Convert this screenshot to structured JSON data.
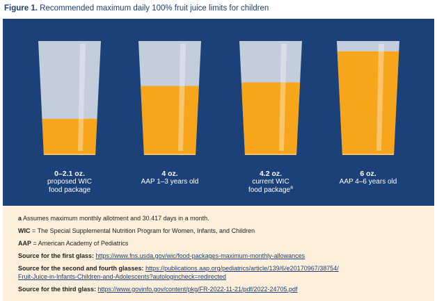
{
  "figure": {
    "label": "Figure 1.",
    "title": "Recommended maximum daily 100% fruit juice limits for children"
  },
  "colors": {
    "background": "#1c4179",
    "juice": "#f7a51b",
    "glass": "#d6dde6",
    "notes_background": "#fcefdc",
    "title": "#1d3f73"
  },
  "chart_data": {
    "type": "bar",
    "categories": [
      "0–2.1 oz.",
      "4 oz.",
      "4.2 oz.",
      "6 oz."
    ],
    "values": [
      2.1,
      4,
      4.2,
      6
    ],
    "unit": "oz.",
    "ylim": [
      0,
      6.6
    ],
    "captions": [
      {
        "amount": "0–2.1 oz.",
        "lines": [
          "proposed WIC",
          "food package"
        ],
        "footnote": ""
      },
      {
        "amount": "4 oz.",
        "lines": [
          "AAP 1–3 years old"
        ],
        "footnote": ""
      },
      {
        "amount": "4.2 oz.",
        "lines": [
          "current WIC",
          "food package"
        ],
        "footnote": "a"
      },
      {
        "amount": "6 oz.",
        "lines": [
          "AAP 4–6 years old"
        ],
        "footnote": ""
      }
    ]
  },
  "notes": {
    "a": {
      "key": "a",
      "text": " Assumes maximum monthly allotment and 30.417 days in a month."
    },
    "wic": {
      "key": "WIC",
      "text": " = The Special Supplemental Nutrition Program for Women, Infants, and Children"
    },
    "aap": {
      "key": "AAP",
      "text": " = American Academy of Pediatrics"
    },
    "source1": {
      "key": "Source for the first glass:",
      "url": "https://www.fns.usda.gov/wic/food-packages-maximum-monthly-allowances"
    },
    "source2": {
      "key": "Source for the second and fourth glasses:",
      "url_line1": "https://publications.aap.org/pediatrics/article/139/6/e20170967/38754/",
      "url_line2": "Fruit-Juice-in-Infants-Children-and-Adolescents?autologincheck=redirected"
    },
    "source3": {
      "key": "Source for the third glass:",
      "url": "https://www.govinfo.gov/content/pkg/FR-2022-11-21/pdf/2022-24705.pdf"
    }
  }
}
